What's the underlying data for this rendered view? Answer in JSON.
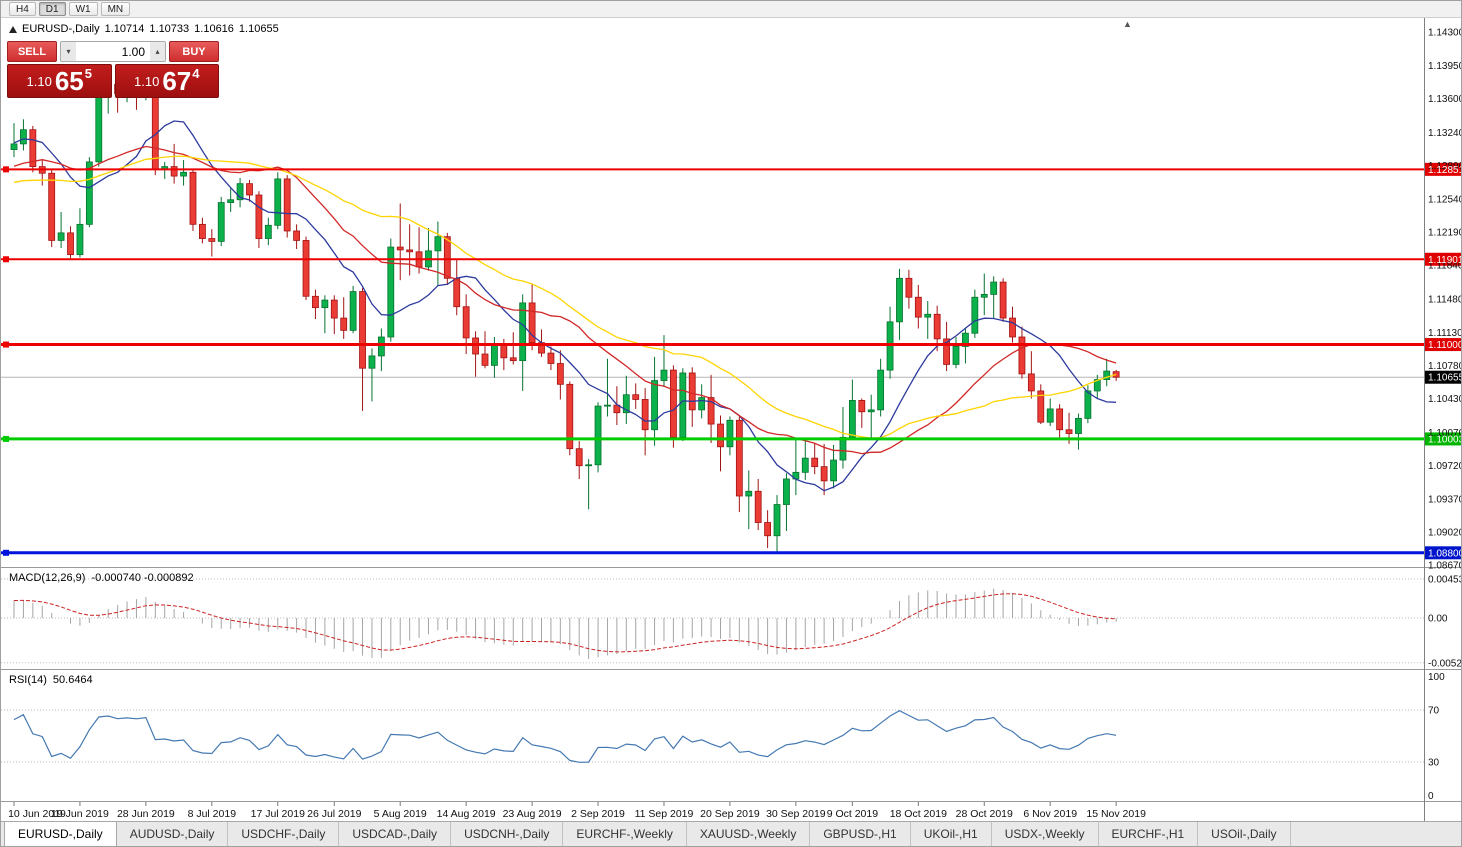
{
  "toolbar": {
    "timeframes": [
      "H4",
      "D1",
      "W1",
      "MN"
    ],
    "active": "D1"
  },
  "chart_header": {
    "symbol": "EURUSD-,Daily",
    "open": "1.10714",
    "high": "1.10733",
    "low": "1.10616",
    "close": "1.10655"
  },
  "trade_panel": {
    "sell_label": "SELL",
    "buy_label": "BUY",
    "volume": "1.00",
    "sell_price": {
      "base": "1.10",
      "pips": "65",
      "pipette": "5"
    },
    "buy_price": {
      "base": "1.10",
      "pips": "67",
      "pipette": "4"
    }
  },
  "price_axis": {
    "ticks": [
      "1.14300",
      "1.13950",
      "1.13600",
      "1.13240",
      "1.12890",
      "1.12540",
      "1.12190",
      "1.11840",
      "1.11480",
      "1.11130",
      "1.10780",
      "1.10430",
      "1.10070",
      "1.09720",
      "1.09370",
      "1.09020",
      "1.08670"
    ],
    "badges": [
      {
        "text": "1.12851",
        "price": 1.12851,
        "color": "#e00000"
      },
      {
        "text": "1.11901",
        "price": 1.11901,
        "color": "#e00000"
      },
      {
        "text": "1.11000",
        "price": 1.11,
        "color": "#e00000"
      },
      {
        "text": "1.10003",
        "price": 1.10003,
        "color": "#00b400"
      },
      {
        "text": "1.08800",
        "price": 1.088,
        "color": "#0014cc"
      }
    ],
    "current": {
      "text": "1.10655",
      "price": 1.10655,
      "color": "#000000"
    }
  },
  "macd_panel": {
    "name": "MACD(12,26,9)",
    "values": "-0.000740 -0.000892",
    "axis": [
      {
        "label": "0.004536",
        "value": 0.004536
      },
      {
        "label": "0.00",
        "value": 0
      },
      {
        "label": "-0.005205",
        "value": -0.005205
      }
    ]
  },
  "rsi_panel": {
    "name": "RSI(14)",
    "value": "50.6464",
    "axis": [
      {
        "label": "100",
        "value": 100
      },
      {
        "label": "70",
        "value": 70
      },
      {
        "label": "30",
        "value": 30
      },
      {
        "label": "0",
        "value": 0
      }
    ],
    "levels": [
      70,
      30
    ]
  },
  "tabs": [
    {
      "label": "EURUSD-,Daily",
      "active": true
    },
    {
      "label": "AUDUSD-,Daily",
      "active": false
    },
    {
      "label": "USDCHF-,Daily",
      "active": false
    },
    {
      "label": "USDCAD-,Daily",
      "active": false
    },
    {
      "label": "USDCNH-,Daily",
      "active": false
    },
    {
      "label": "EURCHF-,Weekly",
      "active": false
    },
    {
      "label": "XAUUSD-,Weekly",
      "active": false
    },
    {
      "label": "GBPUSD-,H1",
      "active": false
    },
    {
      "label": "UKOil-,H1",
      "active": false
    },
    {
      "label": "USDX-,Weekly",
      "active": false
    },
    {
      "label": "EURCHF-,H1",
      "active": false
    },
    {
      "label": "USOil-,Daily",
      "active": false
    }
  ],
  "colors": {
    "bull": "#0db14b",
    "bull_border": "#05732f",
    "bear": "#ea3b34",
    "bear_border": "#a31212",
    "macd_hist": "#a5a5a5",
    "macd_signal": "#cc2222",
    "rsi_line": "#4579b2",
    "current_line": "#b5b5b5",
    "grid_dotted": "#bdbdbd",
    "axis_text": "#111111"
  },
  "chart_data": {
    "type": "candlestick",
    "symbol": "EURUSD-",
    "timeframe": "Daily",
    "ylim": [
      1.0865,
      1.1445
    ],
    "current_price": 1.10655,
    "x_labels": [
      "10 Jun 2019",
      "19 Jun 2019",
      "28 Jun 2019",
      "8 Jul 2019",
      "17 Jul 2019",
      "26 Jul 2019",
      "5 Aug 2019",
      "14 Aug 2019",
      "23 Aug 2019",
      "2 Sep 2019",
      "11 Sep 2019",
      "20 Sep 2019",
      "30 Sep 2019",
      "9 Oct 2019",
      "18 Oct 2019",
      "28 Oct 2019",
      "6 Nov 2019",
      "15 Nov 2019"
    ],
    "levels": [
      {
        "price": 1.12851,
        "color": "#ee0000",
        "width": 2
      },
      {
        "price": 1.11901,
        "color": "#ee0000",
        "width": 2
      },
      {
        "price": 1.11,
        "color": "#ee0000",
        "width": 3
      },
      {
        "price": 1.10003,
        "color": "#00cc00",
        "width": 3
      },
      {
        "price": 1.088,
        "color": "#0014dd",
        "width": 3
      }
    ],
    "moving_averages": [
      {
        "period": 10,
        "color": "#2c3a9e"
      },
      {
        "period": 21,
        "color": "#d22727"
      },
      {
        "period": 34,
        "color": "#ffd400"
      }
    ],
    "history_closes": [
      1.1216,
      1.1224,
      1.1233,
      1.1218,
      1.123,
      1.1242,
      1.1256,
      1.1248,
      1.1238,
      1.1252,
      1.126,
      1.1249,
      1.1242,
      1.1256,
      1.127,
      1.1282,
      1.127,
      1.1258,
      1.1266,
      1.128,
      1.1292,
      1.1285,
      1.1298,
      1.131,
      1.132,
      1.1332,
      1.1336,
      1.1322,
      1.131,
      1.1306
    ],
    "candles": [
      [
        1.1306,
        1.1334,
        1.1298,
        1.1312
      ],
      [
        1.1312,
        1.1338,
        1.1305,
        1.1327
      ],
      [
        1.1327,
        1.1331,
        1.1282,
        1.1288
      ],
      [
        1.1288,
        1.1296,
        1.1268,
        1.1281
      ],
      [
        1.1281,
        1.1285,
        1.1203,
        1.121
      ],
      [
        1.121,
        1.124,
        1.1202,
        1.1218
      ],
      [
        1.1218,
        1.1225,
        1.119,
        1.1195
      ],
      [
        1.1195,
        1.1244,
        1.1192,
        1.1227
      ],
      [
        1.1227,
        1.1298,
        1.1224,
        1.1293
      ],
      [
        1.1293,
        1.1378,
        1.1288,
        1.1368
      ],
      [
        1.1368,
        1.1382,
        1.1344,
        1.1375
      ],
      [
        1.1375,
        1.138,
        1.1345,
        1.1365
      ],
      [
        1.1365,
        1.139,
        1.1356,
        1.137
      ],
      [
        1.137,
        1.1379,
        1.1348,
        1.1367
      ],
      [
        1.1367,
        1.138,
        1.1358,
        1.1373
      ],
      [
        1.1373,
        1.1376,
        1.1279,
        1.1285
      ],
      [
        1.1285,
        1.1293,
        1.1275,
        1.1288
      ],
      [
        1.1288,
        1.1312,
        1.127,
        1.1278
      ],
      [
        1.1278,
        1.1295,
        1.1268,
        1.1282
      ],
      [
        1.1282,
        1.1286,
        1.122,
        1.1227
      ],
      [
        1.1227,
        1.1234,
        1.1207,
        1.1212
      ],
      [
        1.1212,
        1.1222,
        1.1193,
        1.1209
      ],
      [
        1.1209,
        1.1256,
        1.1204,
        1.125
      ],
      [
        1.125,
        1.1265,
        1.124,
        1.1253
      ],
      [
        1.1253,
        1.1276,
        1.1245,
        1.127
      ],
      [
        1.127,
        1.1274,
        1.1251,
        1.1258
      ],
      [
        1.1258,
        1.1262,
        1.1202,
        1.1212
      ],
      [
        1.1212,
        1.1234,
        1.1205,
        1.1226
      ],
      [
        1.1226,
        1.1282,
        1.1222,
        1.1275
      ],
      [
        1.1275,
        1.1279,
        1.1213,
        1.122
      ],
      [
        1.122,
        1.1227,
        1.1201,
        1.121
      ],
      [
        1.121,
        1.1214,
        1.1147,
        1.1151
      ],
      [
        1.1151,
        1.1158,
        1.1127,
        1.1139
      ],
      [
        1.1139,
        1.1152,
        1.1112,
        1.1147
      ],
      [
        1.1147,
        1.1152,
        1.1111,
        1.1128
      ],
      [
        1.1128,
        1.115,
        1.1106,
        1.1115
      ],
      [
        1.1115,
        1.1162,
        1.1112,
        1.1156
      ],
      [
        1.1156,
        1.116,
        1.103,
        1.1075
      ],
      [
        1.1075,
        1.1096,
        1.104,
        1.1088
      ],
      [
        1.1088,
        1.1117,
        1.1072,
        1.1108
      ],
      [
        1.1108,
        1.1212,
        1.1103,
        1.1203
      ],
      [
        1.1203,
        1.1249,
        1.1168,
        1.12
      ],
      [
        1.12,
        1.1227,
        1.1173,
        1.1198
      ],
      [
        1.1198,
        1.1224,
        1.1175,
        1.1182
      ],
      [
        1.1182,
        1.1223,
        1.1178,
        1.1199
      ],
      [
        1.1199,
        1.123,
        1.1162,
        1.1214
      ],
      [
        1.1214,
        1.1218,
        1.1163,
        1.117
      ],
      [
        1.117,
        1.1191,
        1.1131,
        1.114
      ],
      [
        1.114,
        1.1153,
        1.109,
        1.1107
      ],
      [
        1.1107,
        1.1114,
        1.1066,
        1.109
      ],
      [
        1.109,
        1.1114,
        1.1075,
        1.1078
      ],
      [
        1.1078,
        1.1108,
        1.1065,
        1.1099
      ],
      [
        1.1099,
        1.1106,
        1.1073,
        1.1086
      ],
      [
        1.1086,
        1.1113,
        1.1079,
        1.1083
      ],
      [
        1.1083,
        1.1153,
        1.1051,
        1.1144
      ],
      [
        1.1144,
        1.1164,
        1.1094,
        1.1102
      ],
      [
        1.1102,
        1.1116,
        1.1087,
        1.1091
      ],
      [
        1.1091,
        1.1098,
        1.1073,
        1.108
      ],
      [
        1.108,
        1.1094,
        1.1042,
        1.1058
      ],
      [
        1.1058,
        1.1061,
        1.0983,
        1.099
      ],
      [
        1.099,
        1.0998,
        1.0958,
        1.0972
      ],
      [
        1.0972,
        1.0979,
        1.0926,
        1.0973
      ],
      [
        1.0973,
        1.1039,
        1.0965,
        1.1035
      ],
      [
        1.1035,
        1.1085,
        1.1024,
        1.1036
      ],
      [
        1.1036,
        1.1056,
        1.1015,
        1.1028
      ],
      [
        1.1028,
        1.1067,
        1.1016,
        1.1047
      ],
      [
        1.1047,
        1.1059,
        1.1032,
        1.1042
      ],
      [
        1.1042,
        1.1054,
        1.0983,
        1.101
      ],
      [
        1.101,
        1.1087,
        1.0993,
        1.1062
      ],
      [
        1.1062,
        1.111,
        1.1055,
        1.1073
      ],
      [
        1.1073,
        1.1078,
        1.0991,
        1.1002
      ],
      [
        1.1002,
        1.1075,
        1.0998,
        1.107
      ],
      [
        1.107,
        1.1076,
        1.1013,
        1.1031
      ],
      [
        1.1031,
        1.1058,
        1.1022,
        1.1044
      ],
      [
        1.1044,
        1.1068,
        1.0996,
        1.1016
      ],
      [
        1.1016,
        1.1025,
        1.0966,
        1.0992
      ],
      [
        1.0992,
        1.1024,
        1.0983,
        1.102
      ],
      [
        1.102,
        1.1024,
        1.0923,
        1.094
      ],
      [
        1.094,
        1.0967,
        1.0905,
        1.0945
      ],
      [
        1.0945,
        1.0958,
        1.0904,
        1.0912
      ],
      [
        1.0912,
        1.0925,
        1.0885,
        1.0898
      ],
      [
        1.0898,
        1.0941,
        1.0881,
        1.0931
      ],
      [
        1.0931,
        1.0964,
        1.0903,
        1.0958
      ],
      [
        1.0958,
        1.0999,
        1.0941,
        1.0965
      ],
      [
        1.0965,
        1.0999,
        1.0957,
        1.098
      ],
      [
        1.098,
        1.0996,
        1.0963,
        1.0971
      ],
      [
        1.0971,
        1.0995,
        1.0941,
        1.0956
      ],
      [
        1.0956,
        1.0994,
        1.0948,
        1.0978
      ],
      [
        1.0978,
        1.1034,
        1.0969,
        1.1002
      ],
      [
        1.1002,
        1.1063,
        1.1,
        1.1041
      ],
      [
        1.1041,
        1.1043,
        1.1012,
        1.1029
      ],
      [
        1.1029,
        1.1047,
        1.1001,
        1.1031
      ],
      [
        1.1031,
        1.1085,
        1.1024,
        1.1073
      ],
      [
        1.1073,
        1.114,
        1.1064,
        1.1124
      ],
      [
        1.1124,
        1.118,
        1.1105,
        1.117
      ],
      [
        1.117,
        1.1179,
        1.1138,
        1.115
      ],
      [
        1.115,
        1.1163,
        1.1117,
        1.1129
      ],
      [
        1.1129,
        1.1146,
        1.1106,
        1.1132
      ],
      [
        1.1132,
        1.1141,
        1.1093,
        1.1106
      ],
      [
        1.1106,
        1.1124,
        1.1072,
        1.1079
      ],
      [
        1.1079,
        1.1108,
        1.1075,
        1.1098
      ],
      [
        1.1098,
        1.1118,
        1.108,
        1.1112
      ],
      [
        1.1112,
        1.1158,
        1.1107,
        1.115
      ],
      [
        1.115,
        1.1175,
        1.1131,
        1.1153
      ],
      [
        1.1153,
        1.1172,
        1.1128,
        1.1166
      ],
      [
        1.1166,
        1.117,
        1.1124,
        1.1128
      ],
      [
        1.1128,
        1.114,
        1.1102,
        1.1108
      ],
      [
        1.1108,
        1.1119,
        1.1064,
        1.1069
      ],
      [
        1.1069,
        1.1093,
        1.1043,
        1.1051
      ],
      [
        1.1051,
        1.1058,
        1.1016,
        1.1018
      ],
      [
        1.1018,
        1.1043,
        1.1014,
        1.1032
      ],
      [
        1.1032,
        1.1037,
        1.1002,
        1.101
      ],
      [
        1.101,
        1.1028,
        1.0995,
        1.1006
      ],
      [
        1.1006,
        1.1027,
        1.0989,
        1.1022
      ],
      [
        1.1022,
        1.1057,
        1.1017,
        1.1051
      ],
      [
        1.1051,
        1.1068,
        1.1043,
        1.1063
      ],
      [
        1.1063,
        1.1085,
        1.1056,
        1.1072
      ],
      [
        1.10714,
        1.10733,
        1.10616,
        1.10655
      ]
    ]
  }
}
